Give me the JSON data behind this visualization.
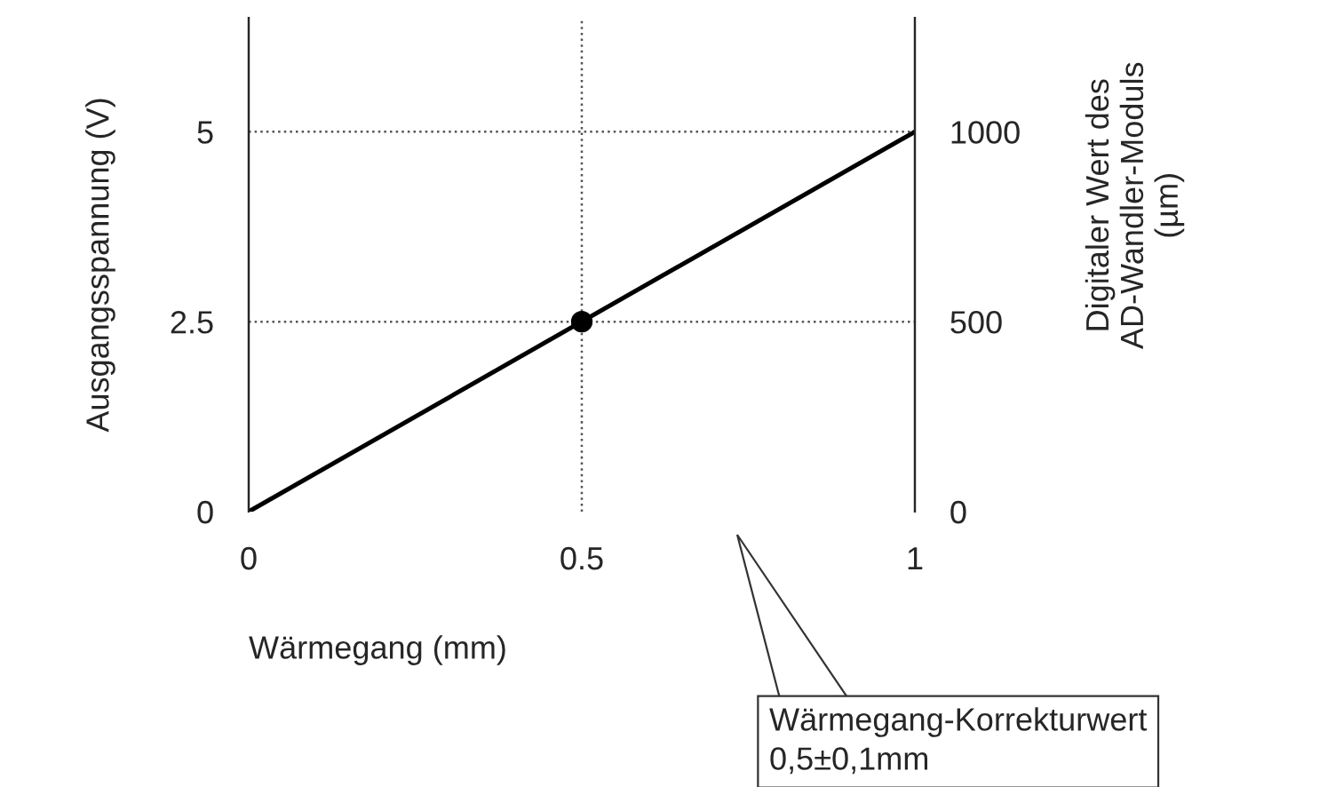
{
  "chart_data": {
    "type": "line",
    "xlabel": "Wärmegang (mm)",
    "ylabel": "Ausgangsspannung (V)",
    "y2label": "Digitaler Wert des\nAD-Wandler-Moduls\n(µm)",
    "xlim": [
      0,
      1
    ],
    "xticks": [
      0,
      0.5,
      1
    ],
    "ylim": [
      0,
      6.5
    ],
    "yticks": [
      0,
      2.5,
      5
    ],
    "y2lim": [
      0,
      1300
    ],
    "y2ticks": [
      0,
      500,
      1000
    ],
    "series": [
      {
        "x": [
          0,
          1
        ],
        "values": [
          0,
          5
        ],
        "color": "#000000",
        "marker": "none",
        "line_style": "solid"
      },
      {
        "type": "scatter",
        "x": [
          0.5
        ],
        "values": [
          2.5
        ],
        "color": "#000000",
        "marker": "circle"
      }
    ],
    "ref_lines": [
      {
        "axis": "y",
        "value": 5,
        "color": "#555555",
        "line_style": "dotted"
      },
      {
        "axis": "y",
        "value": 2.5,
        "color": "#555555",
        "line_style": "dotted"
      },
      {
        "axis": "x",
        "value": 0.5,
        "color": "#555555",
        "line_style": "dotted"
      }
    ],
    "annotations": [
      "Wärmegang-Korrekturwert\n0,5±0,1mm"
    ],
    "grid": false,
    "legend": false
  }
}
